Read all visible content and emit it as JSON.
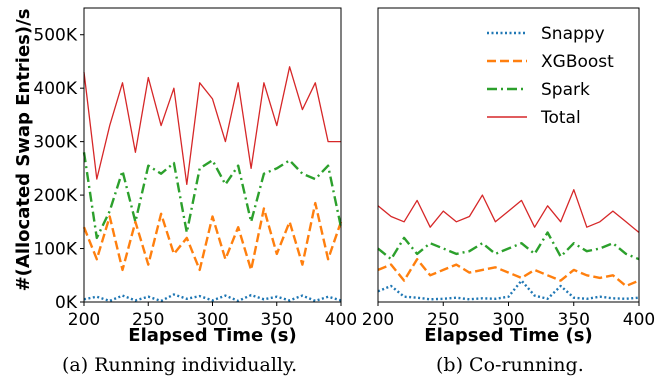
{
  "ylabel": "#(Allocated Swap Entries)/s",
  "ytick_labels": [
    "0K",
    "100K",
    "200K",
    "300K",
    "400K",
    "500K"
  ],
  "colors": {
    "Snappy": "#1f77b4",
    "XGBoost": "#ff7f0e",
    "Spark": "#2ca02c",
    "Total": "#d62728"
  },
  "legend": {
    "placement": "top-right of panel (b)",
    "entries": [
      "Snappy",
      "XGBoost",
      "Spark",
      "Total"
    ]
  },
  "captions": {
    "a": "(a) Running individually.",
    "b": "(b) Co-running."
  },
  "chart_data": [
    {
      "type": "line",
      "xlabel": "Elapsed Time (s)",
      "ylabel": "#(Allocated Swap Entries)/s",
      "xlim": [
        200,
        400
      ],
      "ylim": [
        0,
        550000
      ],
      "xticks": [
        200,
        250,
        300,
        350,
        400
      ],
      "yticks": [
        0,
        100000,
        200000,
        300000,
        400000,
        500000
      ],
      "grid": false,
      "x": [
        200,
        210,
        220,
        230,
        240,
        250,
        260,
        270,
        280,
        290,
        300,
        310,
        320,
        330,
        340,
        350,
        360,
        370,
        380,
        390,
        400
      ],
      "series": [
        {
          "name": "Snappy",
          "style": "dotted",
          "values": [
            5000,
            10000,
            2000,
            12000,
            3000,
            10000,
            2000,
            14000,
            6000,
            11000,
            3000,
            12000,
            2000,
            13000,
            5000,
            10000,
            3000,
            12000,
            2000,
            10000,
            3000
          ]
        },
        {
          "name": "XGBoost",
          "style": "dashed",
          "values": [
            140000,
            80000,
            160000,
            60000,
            150000,
            70000,
            165000,
            90000,
            120000,
            60000,
            160000,
            80000,
            140000,
            60000,
            175000,
            90000,
            150000,
            70000,
            185000,
            80000,
            150000
          ]
        },
        {
          "name": "Spark",
          "style": "dashdot",
          "values": [
            280000,
            120000,
            170000,
            245000,
            150000,
            255000,
            240000,
            260000,
            130000,
            250000,
            265000,
            220000,
            255000,
            150000,
            240000,
            250000,
            265000,
            240000,
            230000,
            255000,
            140000
          ]
        },
        {
          "name": "Total",
          "style": "solid",
          "values": [
            430000,
            230000,
            330000,
            410000,
            280000,
            420000,
            330000,
            400000,
            220000,
            410000,
            380000,
            300000,
            410000,
            250000,
            410000,
            330000,
            440000,
            360000,
            410000,
            300000,
            300000
          ]
        }
      ]
    },
    {
      "type": "line",
      "xlabel": "Elapsed Time (s)",
      "xlim": [
        200,
        400
      ],
      "ylim": [
        0,
        550000
      ],
      "xticks": [
        200,
        250,
        300,
        350,
        400
      ],
      "grid": false,
      "x": [
        200,
        210,
        220,
        230,
        240,
        250,
        260,
        270,
        280,
        290,
        300,
        310,
        320,
        330,
        340,
        350,
        360,
        370,
        380,
        390,
        400
      ],
      "series": [
        {
          "name": "Snappy",
          "style": "dotted",
          "values": [
            20000,
            30000,
            10000,
            8000,
            5000,
            6000,
            8000,
            5000,
            7000,
            6000,
            10000,
            40000,
            12000,
            6000,
            30000,
            8000,
            6000,
            10000,
            7000,
            6000,
            8000
          ]
        },
        {
          "name": "XGBoost",
          "style": "dashed",
          "values": [
            60000,
            70000,
            40000,
            80000,
            50000,
            60000,
            70000,
            55000,
            60000,
            65000,
            55000,
            45000,
            60000,
            50000,
            40000,
            60000,
            50000,
            45000,
            50000,
            30000,
            40000
          ]
        },
        {
          "name": "Spark",
          "style": "dashdot",
          "values": [
            100000,
            80000,
            120000,
            90000,
            110000,
            100000,
            90000,
            95000,
            110000,
            90000,
            100000,
            110000,
            90000,
            130000,
            85000,
            110000,
            95000,
            100000,
            110000,
            90000,
            80000
          ]
        },
        {
          "name": "Total",
          "style": "solid",
          "values": [
            180000,
            160000,
            150000,
            190000,
            140000,
            170000,
            150000,
            160000,
            200000,
            150000,
            170000,
            190000,
            140000,
            180000,
            150000,
            210000,
            140000,
            150000,
            170000,
            150000,
            130000
          ]
        }
      ]
    }
  ]
}
